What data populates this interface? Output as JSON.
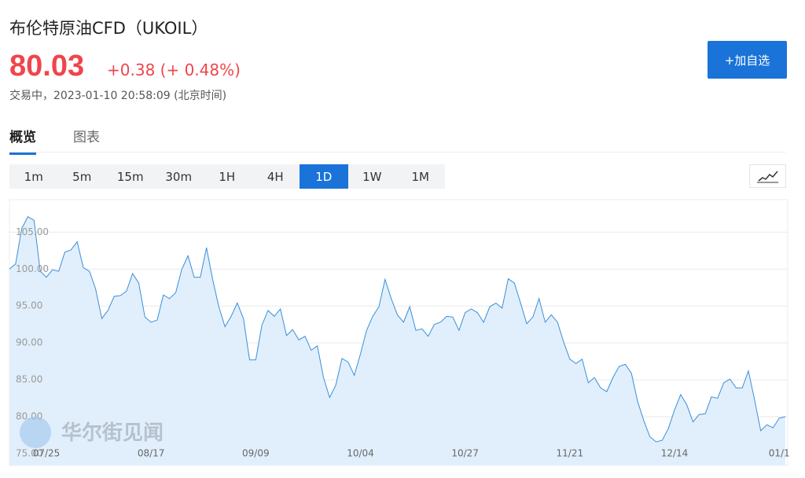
{
  "header": {
    "title": "布伦特原油CFD（UKOIL）",
    "price": "80.03",
    "change": "+0.38 (+ 0.48%)",
    "status": "交易中，2023-01-10 20:58:09 (北京时间)",
    "watchlist_button": "+加自选"
  },
  "tabs": [
    "概览",
    "图表"
  ],
  "active_tab": 0,
  "intervals": [
    "1m",
    "5m",
    "15m",
    "30m",
    "1H",
    "4H",
    "1D",
    "1W",
    "1M"
  ],
  "active_interval": 6,
  "watermark": "华尔街见闻",
  "chart_data": {
    "type": "area",
    "color": "#3a8fd9",
    "fill": "#e1effc",
    "categories": [
      null,
      null,
      null,
      null,
      null,
      null,
      "07/25",
      null,
      null,
      null,
      null,
      null,
      null,
      null,
      null,
      null,
      null,
      null,
      null,
      null,
      null,
      null,
      null,
      "08/17",
      null,
      null,
      null,
      null,
      null,
      null,
      null,
      null,
      null,
      null,
      null,
      null,
      null,
      null,
      null,
      null,
      "09/09",
      null,
      null,
      null,
      null,
      null,
      null,
      null,
      null,
      null,
      null,
      null,
      null,
      null,
      null,
      null,
      null,
      "10/04",
      null,
      null,
      null,
      null,
      null,
      null,
      null,
      null,
      null,
      null,
      null,
      null,
      null,
      null,
      null,
      null,
      "10/27",
      null,
      null,
      null,
      null,
      null,
      null,
      null,
      null,
      null,
      null,
      null,
      null,
      null,
      null,
      null,
      null,
      "11/21",
      null,
      null,
      null,
      null,
      null,
      null,
      null,
      null,
      null,
      null,
      null,
      null,
      null,
      null,
      null,
      null,
      "12/14",
      null,
      null,
      null,
      null,
      null,
      null,
      null,
      null,
      null,
      null,
      null,
      null,
      null,
      null,
      null,
      null,
      "01/1",
      null
    ],
    "values": [
      100.0,
      100.7,
      105.5,
      107.1,
      106.6,
      99.7,
      98.9,
      99.9,
      99.7,
      102.3,
      102.6,
      103.7,
      100.2,
      99.7,
      97.3,
      93.3,
      94.4,
      96.3,
      96.4,
      97.0,
      99.4,
      98.1,
      93.5,
      92.8,
      93.1,
      96.5,
      96.0,
      96.8,
      100.0,
      101.8,
      98.9,
      98.9,
      102.9,
      98.6,
      94.9,
      92.2,
      93.6,
      95.4,
      93.3,
      87.7,
      87.7,
      92.4,
      94.4,
      93.6,
      94.6,
      91.0,
      91.8,
      90.4,
      90.9,
      89.0,
      89.6,
      85.3,
      82.6,
      84.3,
      87.9,
      87.4,
      85.6,
      88.5,
      91.7,
      93.6,
      94.9,
      98.6,
      96.0,
      93.8,
      92.8,
      94.9,
      91.7,
      91.9,
      90.9,
      92.5,
      92.8,
      93.6,
      93.5,
      91.7,
      94.1,
      94.6,
      94.1,
      92.8,
      94.9,
      95.4,
      94.7,
      98.7,
      98.1,
      95.4,
      92.6,
      93.5,
      96.0,
      92.8,
      93.8,
      92.8,
      90.1,
      87.8,
      87.2,
      87.8,
      84.6,
      85.3,
      83.9,
      83.4,
      85.3,
      86.8,
      87.1,
      85.9,
      82.1,
      79.5,
      77.3,
      76.6,
      76.8,
      78.4,
      80.9,
      83.0,
      81.6,
      79.3,
      80.3,
      80.4,
      82.7,
      82.5,
      84.6,
      85.1,
      83.9,
      83.9,
      86.2,
      82.3,
      78.1,
      78.9,
      78.5,
      79.8,
      80.0
    ],
    "ylim": [
      73.4,
      109.4
    ],
    "yticks": [
      {
        "value": 75,
        "label": "75.00"
      },
      {
        "value": 80,
        "label": "80.00"
      },
      {
        "value": 85,
        "label": "85.00"
      },
      {
        "value": 90,
        "label": "90.00"
      },
      {
        "value": 95,
        "label": "95.00"
      },
      {
        "value": 100,
        "label": "100.00"
      },
      {
        "value": 105,
        "label": "105.00"
      }
    ],
    "grid": true
  }
}
